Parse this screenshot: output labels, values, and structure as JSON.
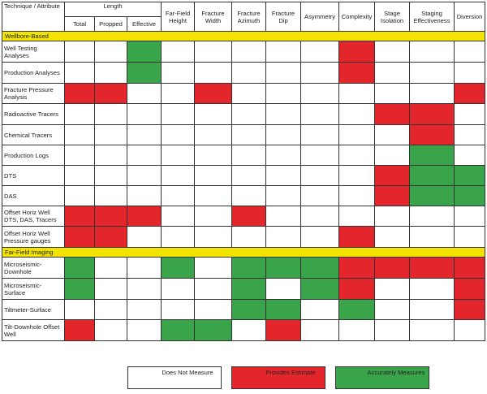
{
  "colors": {
    "none": "#ffffff",
    "estimate": "#e2262b",
    "accurate": "#3aa44a",
    "section": "#f2e400"
  },
  "header": {
    "technique": "Technique / Attribute",
    "length": "Length",
    "length_sub": [
      "Total",
      "Propped",
      "Effective"
    ],
    "columns": [
      "Far-Field Height",
      "Fracture Width",
      "Fracture Azimuth",
      "Fracture Dip",
      "Asymmetry",
      "Complexity",
      "Stage Isolation",
      "Staging Effectiveness",
      "Diversion"
    ]
  },
  "sections": [
    {
      "title": "Wellbore-Based",
      "rows": [
        {
          "label": "Well Testing Analyses",
          "cells": [
            "none",
            "none",
            "accurate",
            "none",
            "none",
            "none",
            "none",
            "none",
            "red",
            "none",
            "none",
            "none"
          ]
        },
        {
          "label": "Production Analyses",
          "cells": [
            "none",
            "none",
            "accurate",
            "none",
            "none",
            "none",
            "none",
            "none",
            "red",
            "none",
            "none",
            "none"
          ]
        },
        {
          "label": "Fracture Pressure Analysis",
          "cells": [
            "red",
            "red",
            "none",
            "none",
            "red",
            "none",
            "none",
            "none",
            "none",
            "none",
            "none",
            "red"
          ]
        },
        {
          "label": "Radioactive Tracers",
          "cells": [
            "none",
            "none",
            "none",
            "none",
            "none",
            "none",
            "none",
            "none",
            "none",
            "red",
            "red",
            "none"
          ]
        },
        {
          "label": "Chemical Tracers",
          "cells": [
            "none",
            "none",
            "none",
            "none",
            "none",
            "none",
            "none",
            "none",
            "none",
            "none",
            "red",
            "none"
          ]
        },
        {
          "label": "Production Logs",
          "cells": [
            "none",
            "none",
            "none",
            "none",
            "none",
            "none",
            "none",
            "none",
            "none",
            "none",
            "accurate",
            "none"
          ]
        },
        {
          "label": "DTS",
          "cells": [
            "none",
            "none",
            "none",
            "none",
            "none",
            "none",
            "none",
            "none",
            "none",
            "red",
            "accurate",
            "accurate"
          ]
        },
        {
          "label": "DAS",
          "cells": [
            "none",
            "none",
            "none",
            "none",
            "none",
            "none",
            "none",
            "none",
            "none",
            "red",
            "accurate",
            "accurate"
          ]
        },
        {
          "label": "Offset Horiz Well DTS, DAS, Tracers",
          "cells": [
            "red",
            "red",
            "red",
            "none",
            "none",
            "red",
            "none",
            "none",
            "none",
            "none",
            "none",
            "none"
          ]
        },
        {
          "label": "Offset Horiz Well Pressure gauges",
          "cells": [
            "red",
            "red",
            "none",
            "none",
            "none",
            "none",
            "none",
            "none",
            "red",
            "none",
            "none",
            "none"
          ]
        }
      ]
    },
    {
      "title": "Far-Field Imaging",
      "rows": [
        {
          "label": "Microseismic-Downhole",
          "cells": [
            "accurate",
            "none",
            "none",
            "accurate",
            "none",
            "accurate",
            "accurate",
            "accurate",
            "red",
            "red",
            "red",
            "red"
          ]
        },
        {
          "label": "Microseismic-Surface",
          "cells": [
            "accurate",
            "none",
            "none",
            "none",
            "none",
            "accurate",
            "none",
            "accurate",
            "red",
            "none",
            "none",
            "red"
          ]
        },
        {
          "label": "Tiltmeter-Surface",
          "cells": [
            "none",
            "none",
            "none",
            "none",
            "none",
            "accurate",
            "accurate",
            "none",
            "accurate",
            "none",
            "none",
            "red"
          ]
        },
        {
          "label": "Tilt-Downhole Offset Well",
          "cells": [
            "red",
            "none",
            "none",
            "accurate",
            "accurate",
            "none",
            "red",
            "none",
            "none",
            "none",
            "none",
            "none"
          ]
        }
      ]
    }
  ],
  "legend": [
    {
      "key": "none",
      "text": "Does Not Measure"
    },
    {
      "key": "estimate",
      "text": "Provides Estimate"
    },
    {
      "key": "accurate",
      "text": "Accurately Measures"
    }
  ]
}
